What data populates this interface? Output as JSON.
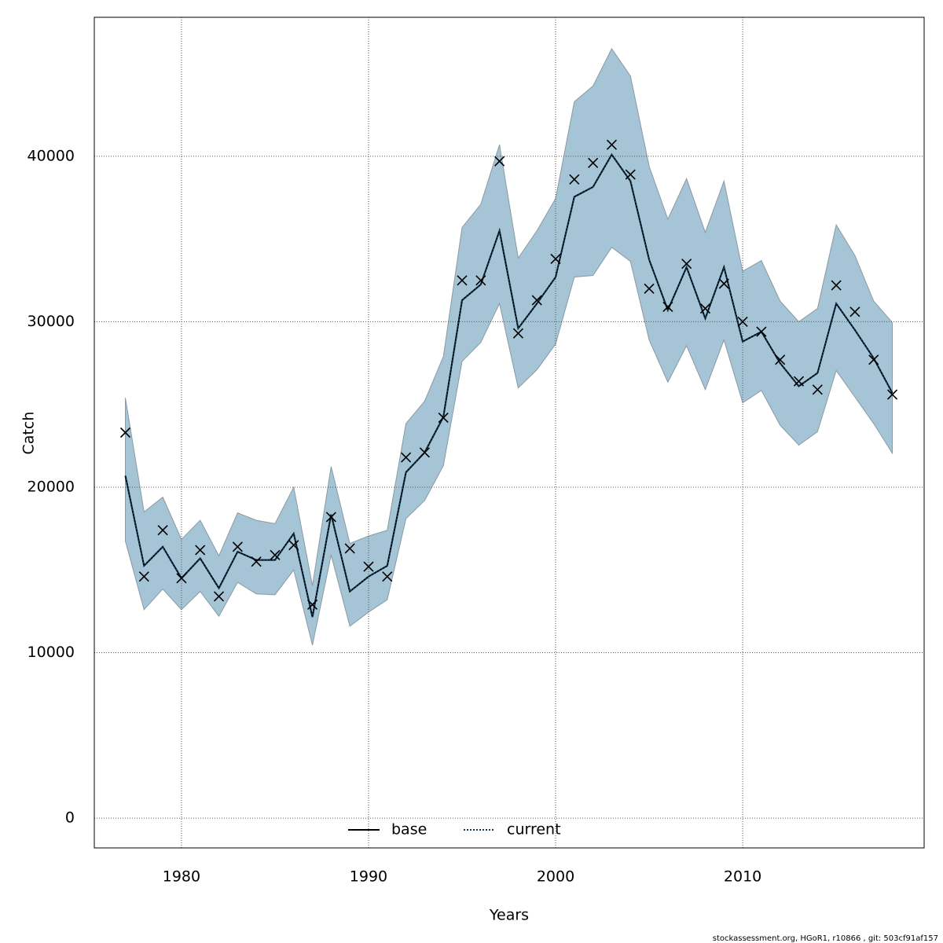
{
  "chart_data": {
    "type": "line",
    "xlabel": "Years",
    "ylabel": "Catch",
    "footer": "stockassessment.org, HGoR1, r10866 , git: 503cf91af157",
    "x": [
      1977,
      1978,
      1979,
      1980,
      1981,
      1982,
      1983,
      1984,
      1985,
      1986,
      1987,
      1988,
      1989,
      1990,
      1991,
      1992,
      1993,
      1994,
      1995,
      1996,
      1997,
      1998,
      1999,
      2000,
      2001,
      2002,
      2003,
      2004,
      2005,
      2006,
      2007,
      2008,
      2009,
      2010,
      2011,
      2012,
      2013,
      2014,
      2015,
      2016,
      2017,
      2018
    ],
    "band": {
      "color": "#a5c4d5",
      "upper": [
        25400,
        18500,
        19400,
        16850,
        18000,
        15850,
        18450,
        18000,
        17800,
        20000,
        14050,
        21250,
        16600,
        17050,
        17400,
        23850,
        25200,
        27900,
        35700,
        37100,
        40700,
        33850,
        35500,
        37450,
        43300,
        44250,
        46500,
        44850,
        39400,
        36200,
        38650,
        35400,
        38500,
        33050,
        33700,
        31250,
        30000,
        30800,
        35850,
        34000,
        31250,
        29950
      ],
      "lower": [
        16750,
        12600,
        13850,
        12600,
        13700,
        12200,
        14250,
        13550,
        13500,
        15000,
        10450,
        15900,
        11600,
        12450,
        13200,
        18100,
        19200,
        21300,
        27600,
        28750,
        31100,
        26000,
        27100,
        28650,
        32700,
        32800,
        34500,
        33650,
        28900,
        26350,
        28550,
        25900,
        28900,
        25100,
        25850,
        23750,
        22550,
        23350,
        27050,
        25450,
        23850,
        22050
      ]
    },
    "series": [
      {
        "name": "base",
        "color": "#000000",
        "dash": "solid",
        "values": [
          20700,
          15250,
          16400,
          14500,
          15700,
          13900,
          16100,
          15600,
          15600,
          17200,
          12150,
          18350,
          13700,
          14600,
          15250,
          20900,
          22100,
          24250,
          31300,
          32250,
          35500,
          29600,
          31100,
          32700,
          37550,
          38150,
          40100,
          38500,
          33750,
          30700,
          33300,
          30200,
          33300,
          28800,
          29400,
          27500,
          26100,
          26900,
          31100,
          29500,
          27800,
          25700
        ]
      },
      {
        "name": "current",
        "color": "#0b3d5c",
        "dash": "dotted",
        "values": [
          20700,
          15250,
          16400,
          14500,
          15700,
          13900,
          16100,
          15600,
          15600,
          17200,
          12150,
          18350,
          13700,
          14600,
          15250,
          20900,
          22100,
          24250,
          31300,
          32250,
          35500,
          29600,
          31100,
          32700,
          37550,
          38150,
          40100,
          38500,
          33750,
          30700,
          33300,
          30200,
          33300,
          28800,
          29400,
          27500,
          26100,
          26900,
          31100,
          29500,
          27800,
          25700
        ]
      }
    ],
    "observed": {
      "color": "#000000",
      "values": [
        23300,
        14600,
        17400,
        14500,
        16200,
        13400,
        16400,
        15500,
        15900,
        16500,
        12900,
        18200,
        16300,
        15200,
        14600,
        21800,
        22100,
        24200,
        32500,
        32500,
        39700,
        29300,
        31300,
        33800,
        38600,
        39600,
        40700,
        38900,
        32000,
        30900,
        33500,
        30800,
        32300,
        30000,
        29400,
        27700,
        26400,
        25900,
        32200,
        30600,
        27700,
        25600
      ]
    },
    "xlim": [
      1975.34,
      2019.7
    ],
    "ylim": [
      -1800,
      48400
    ],
    "xticks": [
      1980,
      1990,
      2000,
      2010
    ],
    "yticks": [
      0,
      10000,
      20000,
      30000,
      40000
    ],
    "grid": true,
    "legend": "bottom"
  }
}
